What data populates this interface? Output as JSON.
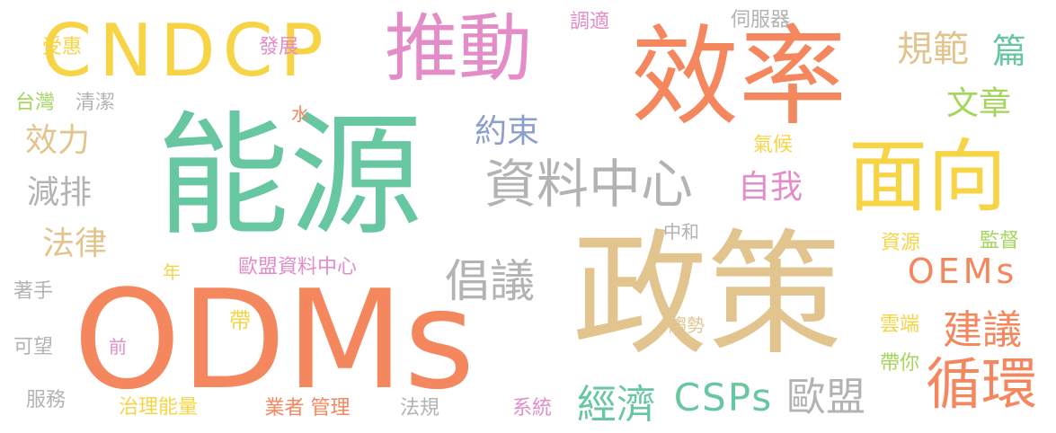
{
  "palette": {
    "teal": "#67c7a0",
    "salmon": "#f5875f",
    "tan": "#e2c48e",
    "pink": "#e38cc7",
    "yellow": "#f7d446",
    "gray": "#b3b3b3",
    "blue": "#8da0cb",
    "green": "#a3d65a"
  },
  "words": [
    {
      "id": "nengyuan",
      "text": "能源",
      "color": "#67c7a0",
      "weight": 1.0
    },
    {
      "id": "zhengce",
      "text": "政策",
      "color": "#e2c48e",
      "weight": 0.95
    },
    {
      "id": "odms",
      "text": "ODMs",
      "color": "#f5875f",
      "weight": 0.9
    },
    {
      "id": "xiaolu",
      "text": "效率",
      "color": "#f5875f",
      "weight": 0.85
    },
    {
      "id": "cndcp",
      "text": "CNDCP",
      "color": "#f7d446",
      "weight": 0.6
    },
    {
      "id": "tuidong",
      "text": "推動",
      "color": "#e38cc7",
      "weight": 0.6
    },
    {
      "id": "mianxiang",
      "text": "面向",
      "color": "#f7d446",
      "weight": 0.55
    },
    {
      "id": "ziliaozhongxin",
      "text": "資料中心",
      "color": "#b3b3b3",
      "weight": 0.4
    },
    {
      "id": "xunhuan",
      "text": "循環",
      "color": "#f5875f",
      "weight": 0.4
    },
    {
      "id": "changyi",
      "text": "倡議",
      "color": "#b3b3b3",
      "weight": 0.35
    },
    {
      "id": "oems",
      "text": "OEMs",
      "color": "#f5875f",
      "weight": 0.35
    },
    {
      "id": "csps",
      "text": "CSPs",
      "color": "#67c7a0",
      "weight": 0.35
    },
    {
      "id": "jingji",
      "text": "經濟",
      "color": "#67c7a0",
      "weight": 0.35
    },
    {
      "id": "oumeng",
      "text": "歐盟",
      "color": "#b3b3b3",
      "weight": 0.35
    },
    {
      "id": "jianyi",
      "text": "建議",
      "color": "#f5875f",
      "weight": 0.35
    },
    {
      "id": "guifan",
      "text": "規範",
      "color": "#e2c48e",
      "weight": 0.3
    },
    {
      "id": "yueshu",
      "text": "約束",
      "color": "#8da0cb",
      "weight": 0.3
    },
    {
      "id": "xiaoli",
      "text": "效力",
      "color": "#e2c48e",
      "weight": 0.3
    },
    {
      "id": "jianpai",
      "text": "減排",
      "color": "#b3b3b3",
      "weight": 0.3
    },
    {
      "id": "falv",
      "text": "法律",
      "color": "#e2c48e",
      "weight": 0.3
    },
    {
      "id": "ziwo",
      "text": "自我",
      "color": "#e38cc7",
      "weight": 0.3
    },
    {
      "id": "wenzhang",
      "text": "文章",
      "color": "#a3d65a",
      "weight": 0.3
    },
    {
      "id": "pian",
      "text": "篇",
      "color": "#67c7a0",
      "weight": 0.3
    },
    {
      "id": "shouhui",
      "text": "受惠",
      "color": "#f7d446",
      "weight": 0.2
    },
    {
      "id": "fazhan",
      "text": "發展",
      "color": "#e38cc7",
      "weight": 0.2
    },
    {
      "id": "tiaoshi",
      "text": "調適",
      "color": "#e38cc7",
      "weight": 0.2
    },
    {
      "id": "sifuqi",
      "text": "伺服器",
      "color": "#b3b3b3",
      "weight": 0.2
    },
    {
      "id": "taiwan",
      "text": "台灣",
      "color": "#a3d65a",
      "weight": 0.2
    },
    {
      "id": "qingjie",
      "text": "清潔",
      "color": "#b3b3b3",
      "weight": 0.2
    },
    {
      "id": "shui",
      "text": "水",
      "color": "#f5875f",
      "weight": 0.15
    },
    {
      "id": "qihou",
      "text": "氣候",
      "color": "#f7d446",
      "weight": 0.2
    },
    {
      "id": "zhonghe",
      "text": "中和",
      "color": "#b3b3b3",
      "weight": 0.2
    },
    {
      "id": "ziyuan",
      "text": "資源",
      "color": "#f7d446",
      "weight": 0.2
    },
    {
      "id": "jiandu",
      "text": "監督",
      "color": "#a3d65a",
      "weight": 0.2
    },
    {
      "id": "oumengzlzx",
      "text": "歐盟資料中心",
      "color": "#e38cc7",
      "weight": 0.2
    },
    {
      "id": "zhushou",
      "text": "著手",
      "color": "#b3b3b3",
      "weight": 0.2
    },
    {
      "id": "nian",
      "text": "年",
      "color": "#f7d446",
      "weight": 0.15
    },
    {
      "id": "dai",
      "text": "帶",
      "color": "#f7d446",
      "weight": 0.2
    },
    {
      "id": "qian",
      "text": "前",
      "color": "#e38cc7",
      "weight": 0.15
    },
    {
      "id": "keyuan",
      "text": "可望",
      "color": "#b3b3b3",
      "weight": 0.2
    },
    {
      "id": "qushi",
      "text": "趨勢",
      "color": "#e2c48e",
      "weight": 0.2
    },
    {
      "id": "yunduan",
      "text": "雲端",
      "color": "#f7d446",
      "weight": 0.2
    },
    {
      "id": "daini",
      "text": "帶你",
      "color": "#a3d65a",
      "weight": 0.2
    },
    {
      "id": "fuwu",
      "text": "服務",
      "color": "#b3b3b3",
      "weight": 0.2
    },
    {
      "id": "zhilinengliang",
      "text": "治理能量",
      "color": "#f7d446",
      "weight": 0.2
    },
    {
      "id": "yezheguanli",
      "text": "業者 管理",
      "color": "#f5875f",
      "weight": 0.2
    },
    {
      "id": "fagui",
      "text": "法規",
      "color": "#b3b3b3",
      "weight": 0.2
    },
    {
      "id": "xitong",
      "text": "系統",
      "color": "#e38cc7",
      "weight": 0.2
    }
  ]
}
